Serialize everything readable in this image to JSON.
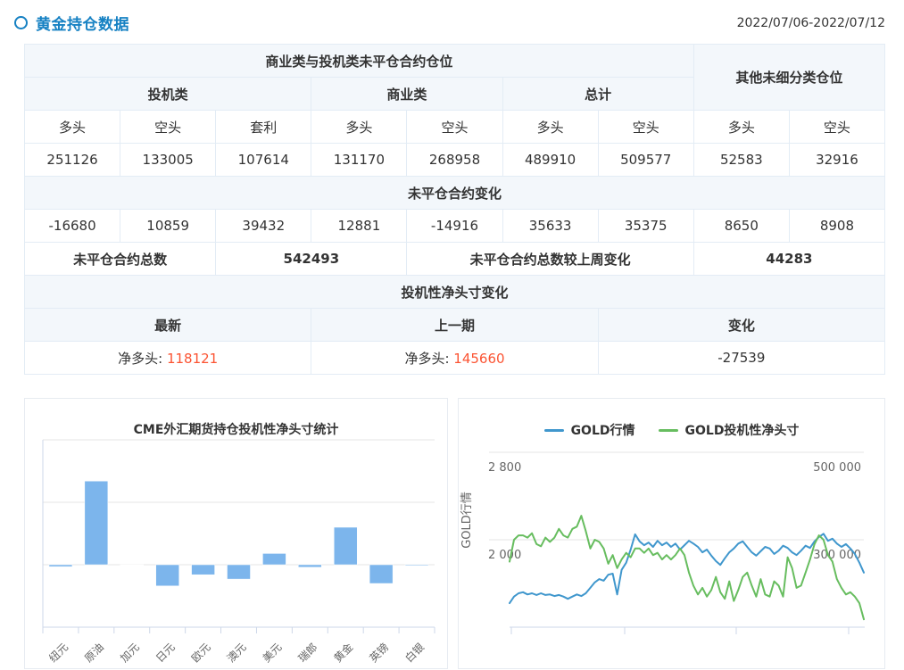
{
  "header": {
    "title": "黄金持仓数据",
    "date_range": "2022/07/06-2022/07/12"
  },
  "colors": {
    "accent_blue": "#1681c3",
    "value_orange": "#fb5433",
    "negative_green": "#21a67c",
    "bar_blue": "#7cb5ec",
    "grid_gray": "#e6e6e6",
    "axis_gray": "#cdd7e8"
  },
  "table": {
    "group_header_left": "商业类与投机类未平仓合约仓位",
    "group_header_right": "其他未细分类仓位",
    "subgroups": [
      "投机类",
      "商业类",
      "总计"
    ],
    "col_headers": [
      "多头",
      "空头",
      "套利",
      "多头",
      "空头",
      "多头",
      "空头",
      "多头",
      "空头"
    ],
    "positions": [
      "251126",
      "133005",
      "107614",
      "131170",
      "268958",
      "489910",
      "509577",
      "52583",
      "32916"
    ],
    "change_header": "未平仓合约变化",
    "changes": [
      "-16680",
      "10859",
      "39432",
      "12881",
      "-14916",
      "35633",
      "35375",
      "8650",
      "8908"
    ],
    "total_label": "未平仓合约总数",
    "total_value": "542493",
    "total_change_label": "未平仓合约总数较上周变化",
    "total_change_value": "44283",
    "net_section_header": "投机性净头寸变化",
    "net_headers": [
      "最新",
      "上一期",
      "变化"
    ],
    "net_latest_label": "净多头:",
    "net_latest_value": "118121",
    "net_prev_label": "净多头:",
    "net_prev_value": "145660",
    "net_change_value": "-27539"
  },
  "chart_data": [
    {
      "type": "bar",
      "title": "CME外汇期货持仓投机性净头寸统计",
      "categories": [
        "纽元",
        "原油",
        "加元",
        "日元",
        "欧元",
        "澳元",
        "美元",
        "瑞郎",
        "黄金",
        "英镑",
        "白银"
      ],
      "values": [
        -1500,
        67000,
        -300,
        -17000,
        -8000,
        -11500,
        9000,
        -2000,
        30000,
        -15000,
        -700
      ],
      "xlabel": "",
      "ylabel": "",
      "ylim": [
        -50000,
        100000
      ],
      "grid_step": 50000,
      "grid": true,
      "bar_color": "#7cb5ec",
      "y_tick_labels_visible": false
    },
    {
      "type": "line",
      "title": "",
      "legend": [
        "GOLD行情",
        "GOLD投机性净头寸"
      ],
      "legend_position": "top",
      "grid": true,
      "y_left": {
        "title": "GOLD行情",
        "tick_labels": [
          "2 800",
          "2 000"
        ],
        "tick_values": [
          2800,
          2000
        ],
        "ylim": [
          1196,
          2800
        ]
      },
      "y_right": {
        "tick_labels": [
          "500 000",
          "300 000"
        ],
        "tick_values": [
          500000,
          300000
        ],
        "ylim": [
          99000,
          500000
        ]
      },
      "x_tick_count": 4,
      "series": [
        {
          "name": "GOLD行情",
          "axis": "left",
          "color": "#4097cd",
          "values": [
            1420,
            1480,
            1510,
            1520,
            1500,
            1510,
            1495,
            1510,
            1495,
            1500,
            1485,
            1495,
            1480,
            1460,
            1480,
            1500,
            1485,
            1510,
            1560,
            1610,
            1640,
            1625,
            1680,
            1690,
            1500,
            1725,
            1790,
            1910,
            2050,
            1985,
            1950,
            1975,
            1935,
            1990,
            1950,
            1975,
            1935,
            1965,
            1910,
            1950,
            1990,
            1965,
            1935,
            1885,
            1910,
            1855,
            1805,
            1770,
            1830,
            1885,
            1920,
            1965,
            1985,
            1935,
            1885,
            1855,
            1895,
            1935,
            1920,
            1870,
            1900,
            1945,
            1925,
            1885,
            1860,
            1900,
            1945,
            1925,
            1985,
            2025,
            2055,
            1990,
            2010,
            1965,
            1935,
            1960,
            1920,
            1870,
            1790,
            1700
          ]
        },
        {
          "name": "GOLD投机性净头寸",
          "axis": "right",
          "color": "#67bd5f",
          "values": [
            250000,
            300000,
            310000,
            310000,
            305000,
            315000,
            290000,
            285000,
            305000,
            295000,
            305000,
            325000,
            310000,
            305000,
            325000,
            330000,
            355000,
            320000,
            280000,
            300000,
            295000,
            280000,
            245000,
            265000,
            235000,
            255000,
            270000,
            260000,
            280000,
            280000,
            270000,
            280000,
            265000,
            270000,
            255000,
            265000,
            255000,
            265000,
            280000,
            265000,
            225000,
            195000,
            175000,
            190000,
            170000,
            185000,
            215000,
            180000,
            165000,
            205000,
            160000,
            185000,
            215000,
            225000,
            195000,
            170000,
            210000,
            175000,
            170000,
            205000,
            195000,
            170000,
            260000,
            235000,
            190000,
            195000,
            225000,
            255000,
            290000,
            310000,
            300000,
            265000,
            250000,
            210000,
            190000,
            175000,
            180000,
            170000,
            155000,
            118000
          ]
        }
      ]
    }
  ]
}
